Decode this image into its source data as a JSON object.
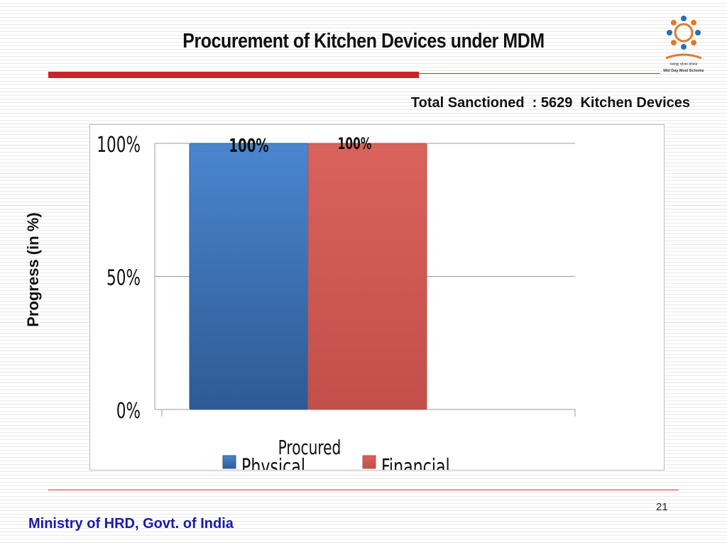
{
  "slide": {
    "title": "Procurement of Kitchen Devices under MDM",
    "subtitle": "Total Sanctioned  : 5629  Kitchen Devices",
    "page_number": "21",
    "footer": "Ministry of HRD, Govt. of India",
    "logo": {
      "icon": "mid-day-meal-logo",
      "text_hindi": "मध्याह्न भोजन योजना",
      "text_english": "Mid Day Meal Scheme"
    }
  },
  "colors": {
    "accent_red": "#d0202a",
    "physical": "#3d6fb0",
    "financial": "#cc5a55",
    "footer_blue": "#1a1aa8"
  },
  "chart_data": {
    "type": "bar",
    "categories": [
      "Procured"
    ],
    "series": [
      {
        "name": "Physical",
        "values": [
          100
        ],
        "label": "100%"
      },
      {
        "name": "Financial",
        "values": [
          100
        ],
        "label": "100%"
      }
    ],
    "ylabel": "Progress (in %)",
    "xlabel": "",
    "ylim": [
      0,
      100
    ],
    "yticks": [
      0,
      50,
      100
    ],
    "ytick_labels": [
      "0%",
      "50%",
      "100%"
    ],
    "grid": true,
    "legend": "bottom"
  }
}
